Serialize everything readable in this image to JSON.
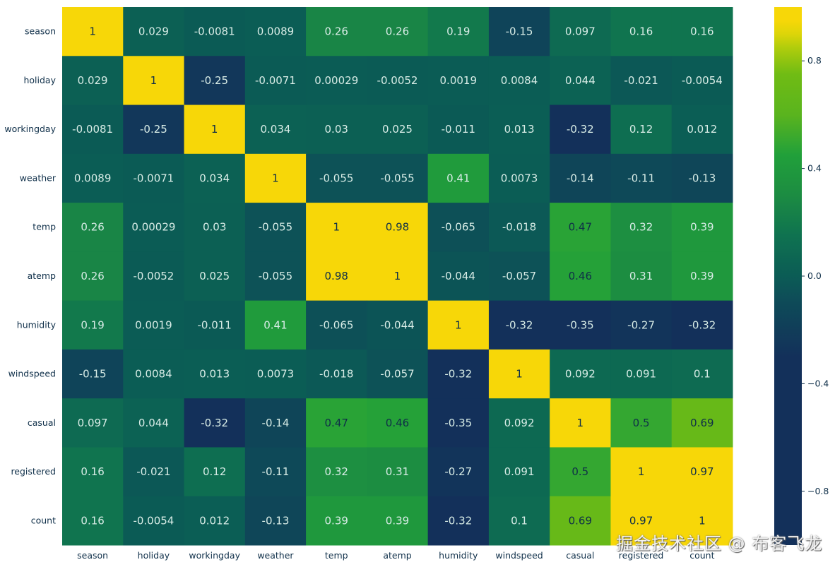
{
  "chart_data": {
    "type": "heatmap",
    "title": "",
    "xlabel": "",
    "ylabel": "",
    "variables": [
      "season",
      "holiday",
      "workingday",
      "weather",
      "temp",
      "atemp",
      "humidity",
      "windspeed",
      "casual",
      "registered",
      "count"
    ],
    "matrix": [
      [
        "1",
        "0.029",
        "-0.0081",
        "0.0089",
        "0.26",
        "0.26",
        "0.19",
        "-0.15",
        "0.097",
        "0.16",
        "0.16"
      ],
      [
        "0.029",
        "1",
        "-0.25",
        "-0.0071",
        "0.00029",
        "-0.0052",
        "0.0019",
        "0.0084",
        "0.044",
        "-0.021",
        "-0.0054"
      ],
      [
        "-0.0081",
        "-0.25",
        "1",
        "0.034",
        "0.03",
        "0.025",
        "-0.011",
        "0.013",
        "-0.32",
        "0.12",
        "0.012"
      ],
      [
        "0.0089",
        "-0.0071",
        "0.034",
        "1",
        "-0.055",
        "-0.055",
        "0.41",
        "0.0073",
        "-0.14",
        "-0.11",
        "-0.13"
      ],
      [
        "0.26",
        "0.00029",
        "0.03",
        "-0.055",
        "1",
        "0.98",
        "-0.065",
        "-0.018",
        "0.47",
        "0.32",
        "0.39"
      ],
      [
        "0.26",
        "-0.0052",
        "0.025",
        "-0.055",
        "0.98",
        "1",
        "-0.044",
        "-0.057",
        "0.46",
        "0.31",
        "0.39"
      ],
      [
        "0.19",
        "0.0019",
        "-0.011",
        "0.41",
        "-0.065",
        "-0.044",
        "1",
        "-0.32",
        "-0.35",
        "-0.27",
        "-0.32"
      ],
      [
        "-0.15",
        "0.0084",
        "0.013",
        "0.0073",
        "-0.018",
        "-0.057",
        "-0.32",
        "1",
        "0.092",
        "0.091",
        "0.1"
      ],
      [
        "0.097",
        "0.044",
        "-0.32",
        "-0.14",
        "0.47",
        "0.46",
        "-0.35",
        "0.092",
        "1",
        "0.5",
        "0.69"
      ],
      [
        "0.16",
        "-0.021",
        "0.12",
        "-0.11",
        "0.32",
        "0.31",
        "-0.27",
        "0.091",
        "0.5",
        "1",
        "0.97"
      ],
      [
        "0.16",
        "-0.0054",
        "0.012",
        "-0.13",
        "0.39",
        "0.39",
        "-0.32",
        "0.1",
        "0.69",
        "0.97",
        "1"
      ]
    ],
    "annotations": true,
    "colorbar": {
      "range": [
        -1,
        1
      ],
      "ticks": [
        0.8,
        0.4,
        0.0,
        -0.4,
        -0.8
      ],
      "tick_labels": [
        "0.8",
        "0.4",
        "0.0",
        "−0.4",
        "−0.8"
      ],
      "placement": "right"
    },
    "colormap": [
      {
        "value": -1.0,
        "color": "#13305a"
      },
      {
        "value": -0.3,
        "color": "#13305a"
      },
      {
        "value": -0.1,
        "color": "#0e4a58"
      },
      {
        "value": 0.0,
        "color": "#0b5c55"
      },
      {
        "value": 0.15,
        "color": "#0f7250"
      },
      {
        "value": 0.3,
        "color": "#1c8c42"
      },
      {
        "value": 0.45,
        "color": "#21a03a"
      },
      {
        "value": 0.6,
        "color": "#5ab41e"
      },
      {
        "value": 0.75,
        "color": "#70bc14"
      },
      {
        "value": 0.88,
        "color": "#c4d20a"
      },
      {
        "value": 0.92,
        "color": "#f7d708"
      },
      {
        "value": 1.0,
        "color": "#f7d708"
      }
    ],
    "text_color_light": "#d8ece6",
    "text_color_dark": "#0f2f48",
    "grid": false
  },
  "watermark": "掘金技术社区 @ 布客飞龙"
}
